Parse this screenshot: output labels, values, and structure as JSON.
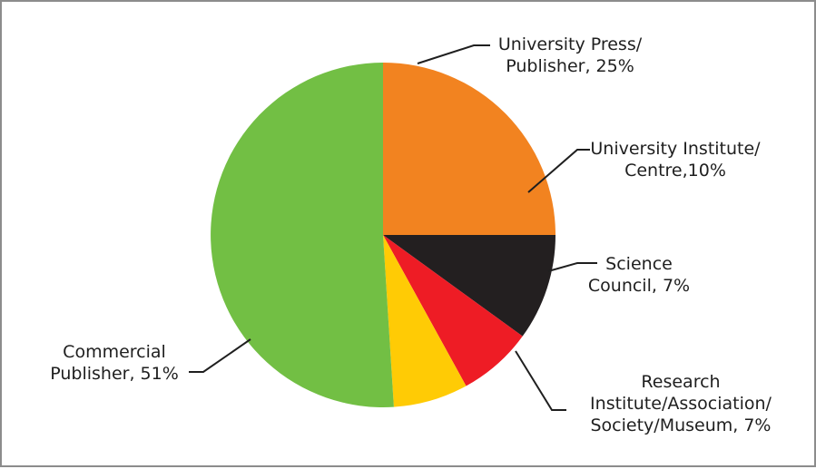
{
  "chart_data": {
    "type": "pie",
    "title": "",
    "slices": [
      {
        "label_lines": [
          "University Press/",
          "Publisher, 25%"
        ],
        "value": 25,
        "color": "#f28320"
      },
      {
        "label_lines": [
          "University Institute/",
          "Centre,10%"
        ],
        "value": 10,
        "color": "#231f20"
      },
      {
        "label_lines": [
          "Science",
          "Council, 7%"
        ],
        "value": 7,
        "color": "#ee1c25"
      },
      {
        "label_lines": [
          "Research",
          "Institute/Association/",
          "Society/Museum, 7%"
        ],
        "value": 7,
        "color": "#ffcb05"
      },
      {
        "label_lines": [
          "Commercial",
          "Publisher, 51%"
        ],
        "value": 51,
        "color": "#72bf44"
      }
    ],
    "start_angle_deg": -90,
    "direction": "clockwise"
  }
}
